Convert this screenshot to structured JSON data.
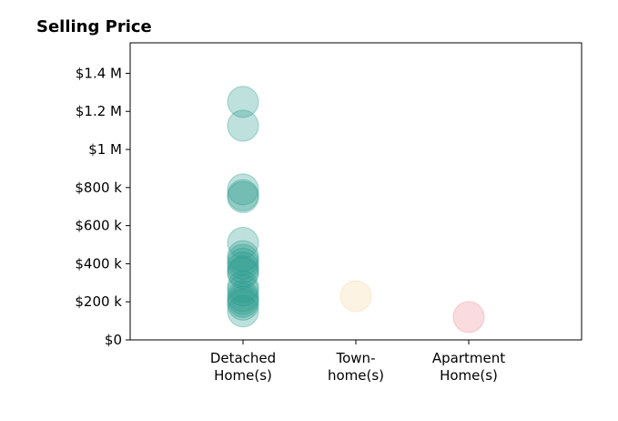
{
  "chart_data": {
    "type": "scatter",
    "title": "Selling Price",
    "xlabel": "",
    "ylabel": "",
    "categories": [
      [
        "Detached",
        "Home(s)"
      ],
      [
        "Town-",
        "home(s)"
      ],
      [
        "Apartment",
        "Home(s)"
      ]
    ],
    "ylim": [
      0,
      1560000
    ],
    "yticks": [
      0,
      200000,
      400000,
      600000,
      800000,
      1000000,
      1200000,
      1400000
    ],
    "ytick_labels": [
      "$0",
      "$200 k",
      "$400 k",
      "$600 k",
      "$800 k",
      "$1 M",
      "$1.2 M",
      "$1.4 M"
    ],
    "grid": false,
    "series": [
      {
        "category": "Detached Home(s)",
        "color": "#2a9d8f",
        "values": [
          1250000,
          1125000,
          790000,
          760000,
          750000,
          510000,
          440000,
          420000,
          400000,
          380000,
          360000,
          350000,
          280000,
          260000,
          230000,
          215000,
          200000,
          185000,
          150000
        ]
      },
      {
        "category": "Town-home(s)",
        "color": "#f4d8a2",
        "values": [
          230000
        ]
      },
      {
        "category": "Apartment Home(s)",
        "color": "#ef8c95",
        "values": [
          120000
        ]
      }
    ]
  }
}
